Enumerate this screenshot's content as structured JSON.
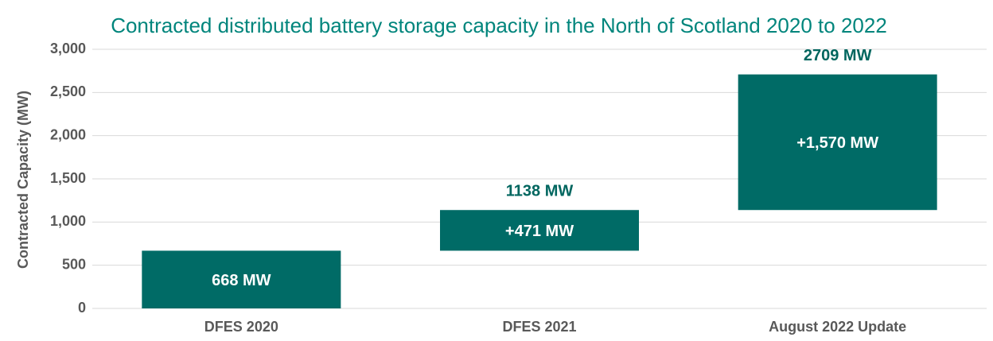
{
  "chart_data": {
    "type": "waterfall",
    "title": "Contracted distributed battery storage capacity in the North of Scotland 2020 to 2022",
    "y_label": "Contracted Capacity (MW)",
    "categories": [
      "DFES 2020",
      "DFES 2021",
      "August 2022 Update"
    ],
    "values": [
      668,
      471,
      1570
    ],
    "value_labels": [
      "668 MW",
      "+471 MW",
      "+1,570 MW"
    ],
    "totals": [
      null,
      1138,
      2709
    ],
    "total_labels": [
      null,
      "1138 MW",
      "2709 MW"
    ],
    "color": "#006b66",
    "ylim": [
      0,
      3000
    ],
    "yticks": [
      0,
      500,
      {
        "value": 1000,
        "label": "1,000"
      },
      {
        "value": 1500,
        "label": "1,500"
      },
      {
        "value": 2000,
        "label": "2,000"
      },
      {
        "value": 2500,
        "label": "2,500"
      },
      {
        "value": 3000,
        "label": "3,000"
      }
    ],
    "grid": true
  }
}
